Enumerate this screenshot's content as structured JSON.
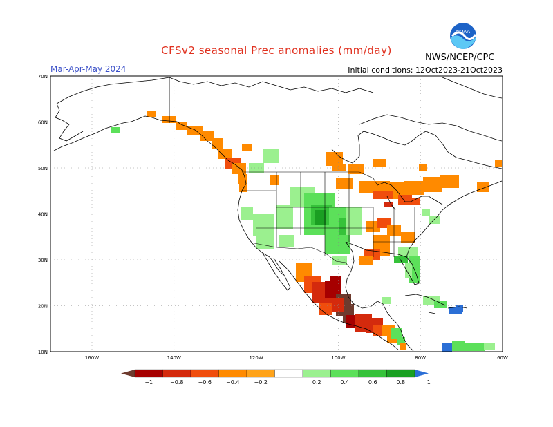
{
  "header": {
    "title": "CFSv2 seasonal Prec anomalies (mm/day)",
    "period": "Mar-Apr-May 2024",
    "initial_conditions": "Initial conditions: 12Oct2023-21Oct2023",
    "agency": "NWS/NCEP/CPC",
    "logo_text": "NOAA"
  },
  "map": {
    "lat_ticks": [
      "70N",
      "60N",
      "50N",
      "40N",
      "30N",
      "20N",
      "10N"
    ],
    "lon_ticks": [
      "160W",
      "140W",
      "120W",
      "100W",
      "80W",
      "60W"
    ]
  },
  "legend": {
    "labels": [
      "−1",
      "−0.8",
      "−0.6",
      "−0.4",
      "−0.2",
      "0.2",
      "0.4",
      "0.6",
      "0.8",
      "1"
    ],
    "colors": [
      "#6e3b2e",
      "#a60000",
      "#d42a0d",
      "#f04d0d",
      "#ff8a00",
      "#ffa31a",
      "#ffffff",
      "#9bf08f",
      "#5ce05a",
      "#36c23a",
      "#1a9f22",
      "#2b6fd6"
    ]
  }
}
